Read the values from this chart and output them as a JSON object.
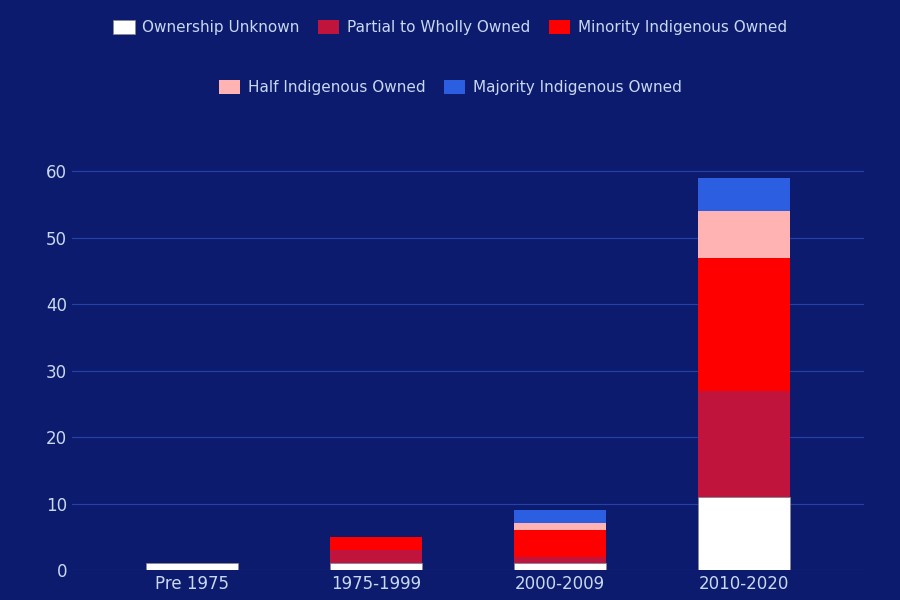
{
  "categories": [
    "Pre 1975",
    "1975-1999",
    "2000-2009",
    "2010-2020"
  ],
  "series": {
    "Ownership Unknown": {
      "values": [
        1,
        1,
        1,
        11
      ],
      "color": "#FFFFFF"
    },
    "Partial to Wholly Owned": {
      "values": [
        0,
        2,
        1,
        16
      ],
      "color": "#C0143C"
    },
    "Minority Indigenous Owned": {
      "values": [
        0,
        2,
        4,
        20
      ],
      "color": "#FF0000"
    },
    "Half Indigenous Owned": {
      "values": [
        0,
        0,
        1,
        7
      ],
      "color": "#FFB3B3"
    },
    "Majority Indigenous Owned": {
      "values": [
        0,
        0,
        2,
        5
      ],
      "color": "#2B5EE0"
    }
  },
  "legend_order": [
    "Ownership Unknown",
    "Partial to Wholly Owned",
    "Minority Indigenous Owned",
    "Half Indigenous Owned",
    "Majority Indigenous Owned"
  ],
  "stack_order": [
    "Ownership Unknown",
    "Partial to Wholly Owned",
    "Minority Indigenous Owned",
    "Half Indigenous Owned",
    "Majority Indigenous Owned"
  ],
  "background_color": "#0D1B6E",
  "grid_color": "#2244AA",
  "text_color": "#C8D8F0",
  "ylim": [
    0,
    65
  ],
  "yticks": [
    0,
    10,
    20,
    30,
    40,
    50,
    60
  ],
  "bar_width": 0.5
}
